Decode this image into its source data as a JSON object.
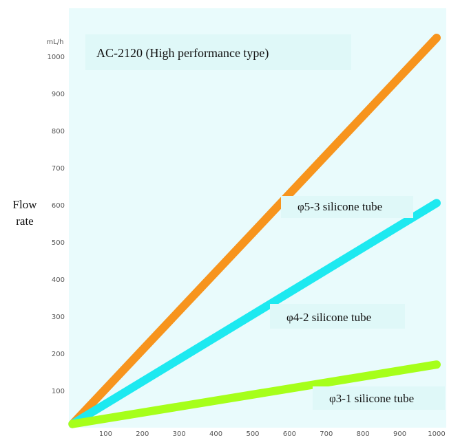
{
  "chart_data": {
    "type": "line",
    "title": "AC-2120 (High performance type)",
    "ylabel": [
      "Flow",
      "rate"
    ],
    "y_unit": "mL/h",
    "xlim": [
      0,
      1000
    ],
    "ylim": [
      0,
      1100
    ],
    "x_ticks": [
      "100",
      "200",
      "300",
      "400",
      "500",
      "600",
      "700",
      "800",
      "900",
      "1000"
    ],
    "y_ticks": [
      "100",
      "200",
      "300",
      "400",
      "500",
      "600",
      "700",
      "800",
      "900",
      "1000"
    ],
    "grid": false,
    "series": [
      {
        "name": "φ5-3 silicone tube",
        "color": "#f7941d",
        "points": [
          [
            10,
            10
          ],
          [
            1000,
            1050
          ]
        ]
      },
      {
        "name": "φ4-2 silicone tube",
        "color": "#1de9f0",
        "points": [
          [
            10,
            10
          ],
          [
            1000,
            605
          ]
        ]
      },
      {
        "name": "φ3-1 silicone tube",
        "color": "#a6ff1a",
        "points": [
          [
            10,
            10
          ],
          [
            1000,
            170
          ]
        ]
      }
    ],
    "background": "#e9fbfc",
    "label_background": "#dff8f8"
  }
}
